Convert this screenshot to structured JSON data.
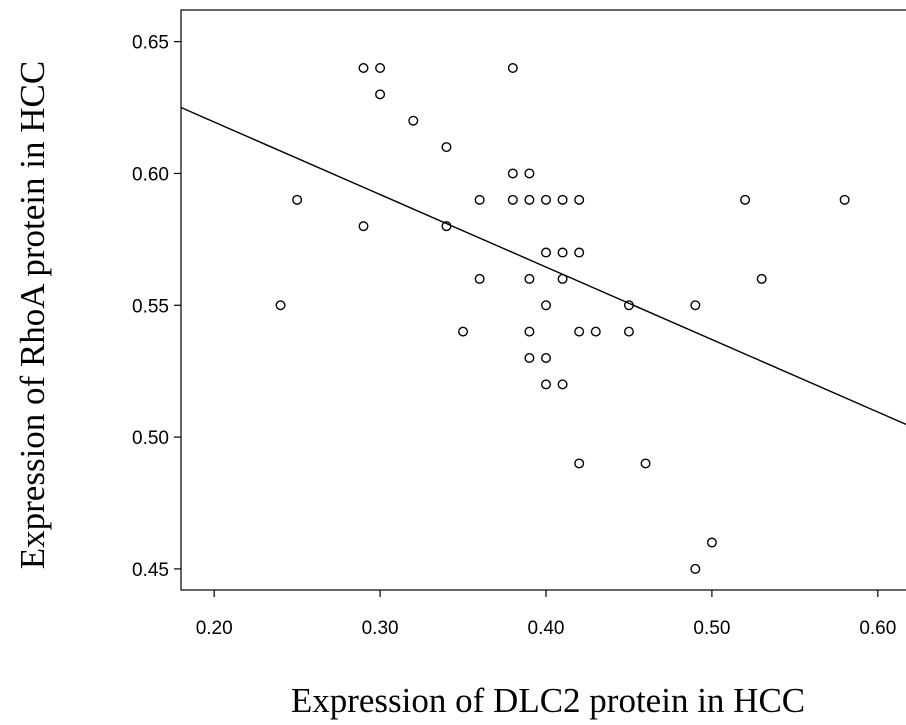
{
  "chart_data": {
    "type": "scatter",
    "title": "",
    "xlabel": "Expression of DLC2 protein in HCC",
    "ylabel": "Expression of RhoA protein in HCC",
    "xlim": [
      0.18,
      0.62
    ],
    "ylim": [
      0.442,
      0.662
    ],
    "x_ticks": [
      {
        "value": 0.2,
        "label": "0.20"
      },
      {
        "value": 0.3,
        "label": "0.30"
      },
      {
        "value": 0.4,
        "label": "0.40"
      },
      {
        "value": 0.5,
        "label": "0.50"
      },
      {
        "value": 0.6,
        "label": "0.60"
      }
    ],
    "y_ticks": [
      {
        "value": 0.45,
        "label": "0.45"
      },
      {
        "value": 0.5,
        "label": "0.50"
      },
      {
        "value": 0.55,
        "label": "0.55"
      },
      {
        "value": 0.6,
        "label": "0.60"
      },
      {
        "value": 0.65,
        "label": "0.65"
      }
    ],
    "grid": false,
    "marker": "open-circle",
    "series": [
      {
        "points": [
          [
            0.24,
            0.55
          ],
          [
            0.25,
            0.59
          ],
          [
            0.29,
            0.64
          ],
          [
            0.3,
            0.64
          ],
          [
            0.3,
            0.63
          ],
          [
            0.29,
            0.58
          ],
          [
            0.32,
            0.62
          ],
          [
            0.34,
            0.61
          ],
          [
            0.34,
            0.58
          ],
          [
            0.35,
            0.54
          ],
          [
            0.36,
            0.59
          ],
          [
            0.36,
            0.56
          ],
          [
            0.38,
            0.64
          ],
          [
            0.38,
            0.6
          ],
          [
            0.38,
            0.59
          ],
          [
            0.39,
            0.6
          ],
          [
            0.39,
            0.59
          ],
          [
            0.39,
            0.56
          ],
          [
            0.39,
            0.54
          ],
          [
            0.39,
            0.53
          ],
          [
            0.4,
            0.59
          ],
          [
            0.4,
            0.57
          ],
          [
            0.4,
            0.55
          ],
          [
            0.4,
            0.53
          ],
          [
            0.4,
            0.52
          ],
          [
            0.41,
            0.59
          ],
          [
            0.41,
            0.57
          ],
          [
            0.41,
            0.56
          ],
          [
            0.41,
            0.52
          ],
          [
            0.42,
            0.59
          ],
          [
            0.42,
            0.57
          ],
          [
            0.42,
            0.54
          ],
          [
            0.42,
            0.49
          ],
          [
            0.43,
            0.54
          ],
          [
            0.45,
            0.55
          ],
          [
            0.45,
            0.54
          ],
          [
            0.46,
            0.49
          ],
          [
            0.49,
            0.55
          ],
          [
            0.49,
            0.45
          ],
          [
            0.5,
            0.46
          ],
          [
            0.52,
            0.59
          ],
          [
            0.53,
            0.56
          ],
          [
            0.58,
            0.59
          ]
        ]
      }
    ],
    "fit_line": {
      "x": [
        0.18,
        0.62
      ],
      "y": [
        0.625,
        0.504
      ]
    }
  }
}
